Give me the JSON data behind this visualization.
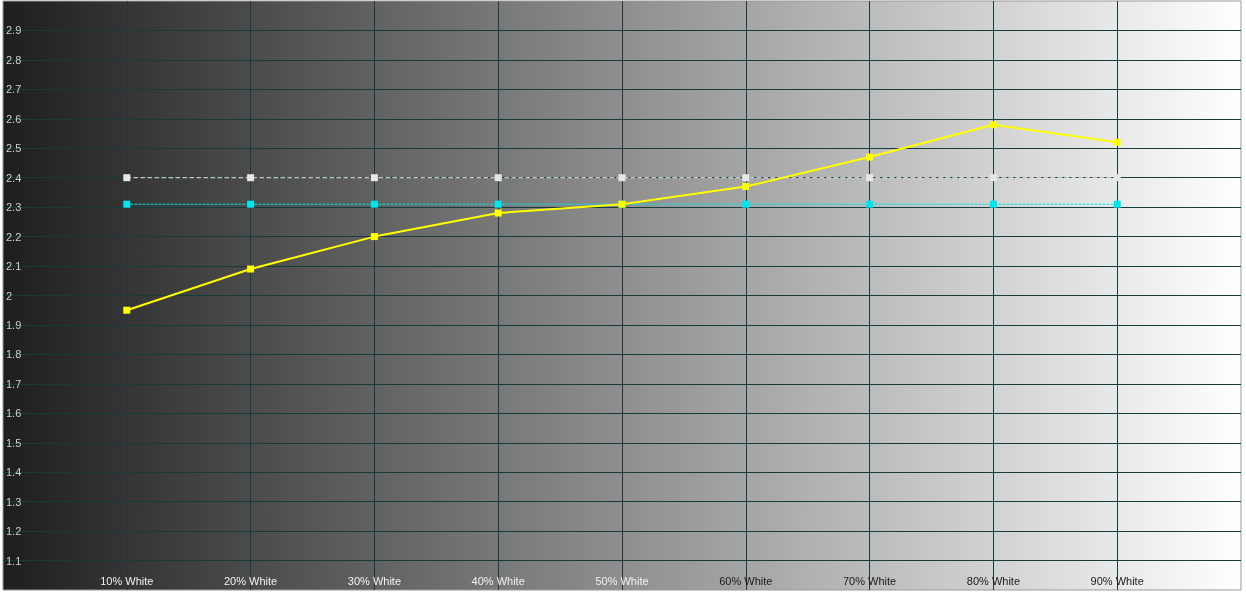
{
  "chart_data": {
    "type": "line",
    "x": [
      10,
      20,
      30,
      40,
      50,
      60,
      70,
      80,
      90
    ],
    "xlim": [
      0,
      100
    ],
    "xticks": [
      {
        "value": 10,
        "label": "10% White"
      },
      {
        "value": 20,
        "label": "20% White"
      },
      {
        "value": 30,
        "label": "30% White"
      },
      {
        "value": 40,
        "label": "40% White"
      },
      {
        "value": 50,
        "label": "50% White"
      },
      {
        "value": 60,
        "label": "60% White"
      },
      {
        "value": 70,
        "label": "70% White"
      },
      {
        "value": 80,
        "label": "80% White"
      },
      {
        "value": 90,
        "label": "90% White"
      }
    ],
    "ylim": [
      1.0,
      3.0
    ],
    "yticks": [
      1.1,
      1.2,
      1.3,
      1.4,
      1.5,
      1.6,
      1.7,
      1.8,
      1.9,
      2,
      2.1,
      2.2,
      2.3,
      2.4,
      2.5,
      2.6,
      2.7,
      2.8,
      2.9
    ],
    "grid": true,
    "marker": "square",
    "series": [
      {
        "color": "#e6e6e6",
        "line_style": "dashed",
        "values": [
          2.4,
          2.4,
          2.4,
          2.4,
          2.4,
          2.4,
          2.4,
          2.4,
          2.4
        ]
      },
      {
        "color": "#00e6ef",
        "line_style": "dotted",
        "values": [
          2.31,
          2.31,
          2.31,
          2.31,
          2.31,
          2.31,
          2.31,
          2.31,
          2.31
        ]
      },
      {
        "color": "#ffff00",
        "line_style": "solid",
        "values": [
          1.95,
          2.09,
          2.2,
          2.28,
          2.31,
          2.37,
          2.47,
          2.58,
          2.52
        ]
      }
    ]
  }
}
